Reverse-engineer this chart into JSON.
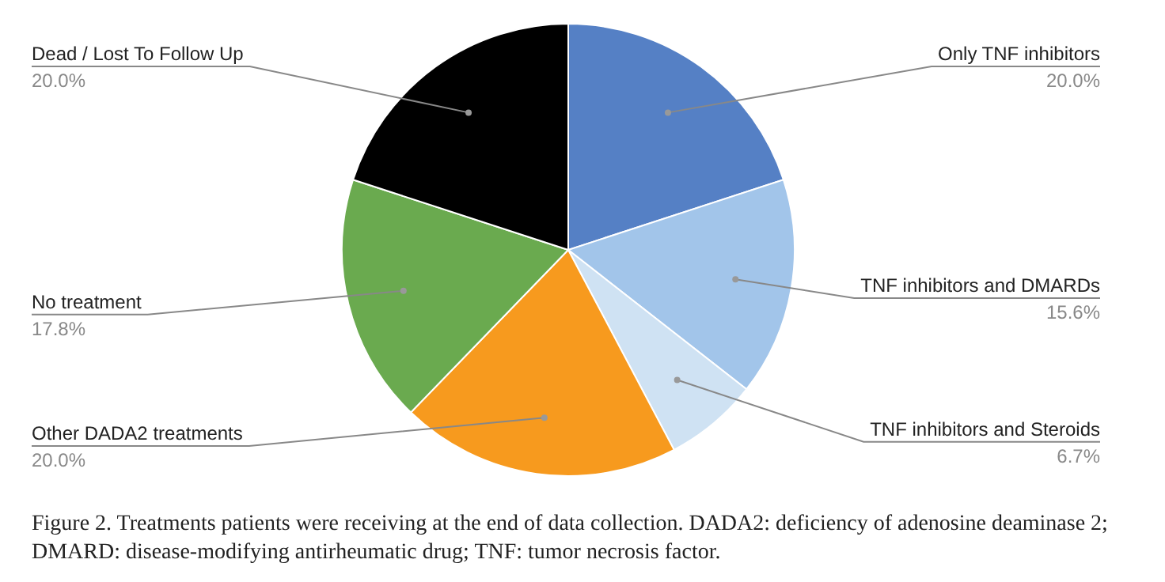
{
  "chart_data": {
    "type": "pie",
    "categories": [
      "Only TNF inhibitors",
      "TNF inhibitors and DMARDs",
      "TNF inhibitors and Steroids",
      "Other DADA2 treatments",
      "No treatment",
      "Dead / Lost To Follow Up"
    ],
    "values": [
      20.0,
      15.6,
      6.7,
      20.0,
      17.8,
      20.0
    ],
    "value_labels": [
      "20.0%",
      "15.6%",
      "6.7%",
      "20.0%",
      "17.8%",
      "20.0%"
    ],
    "colors": [
      "#5580c5",
      "#a2c5ea",
      "#cfe2f3",
      "#f79a1e",
      "#6aaa4f",
      "#000000"
    ],
    "annotations": [
      "Figure 2. Treatments patients were receiving at the end of data collection. DADA2: deficiency of adenosine deaminase 2; DMARD: disease-modifying antirheumatic drug; TNF: tumor necrosis factor."
    ]
  }
}
